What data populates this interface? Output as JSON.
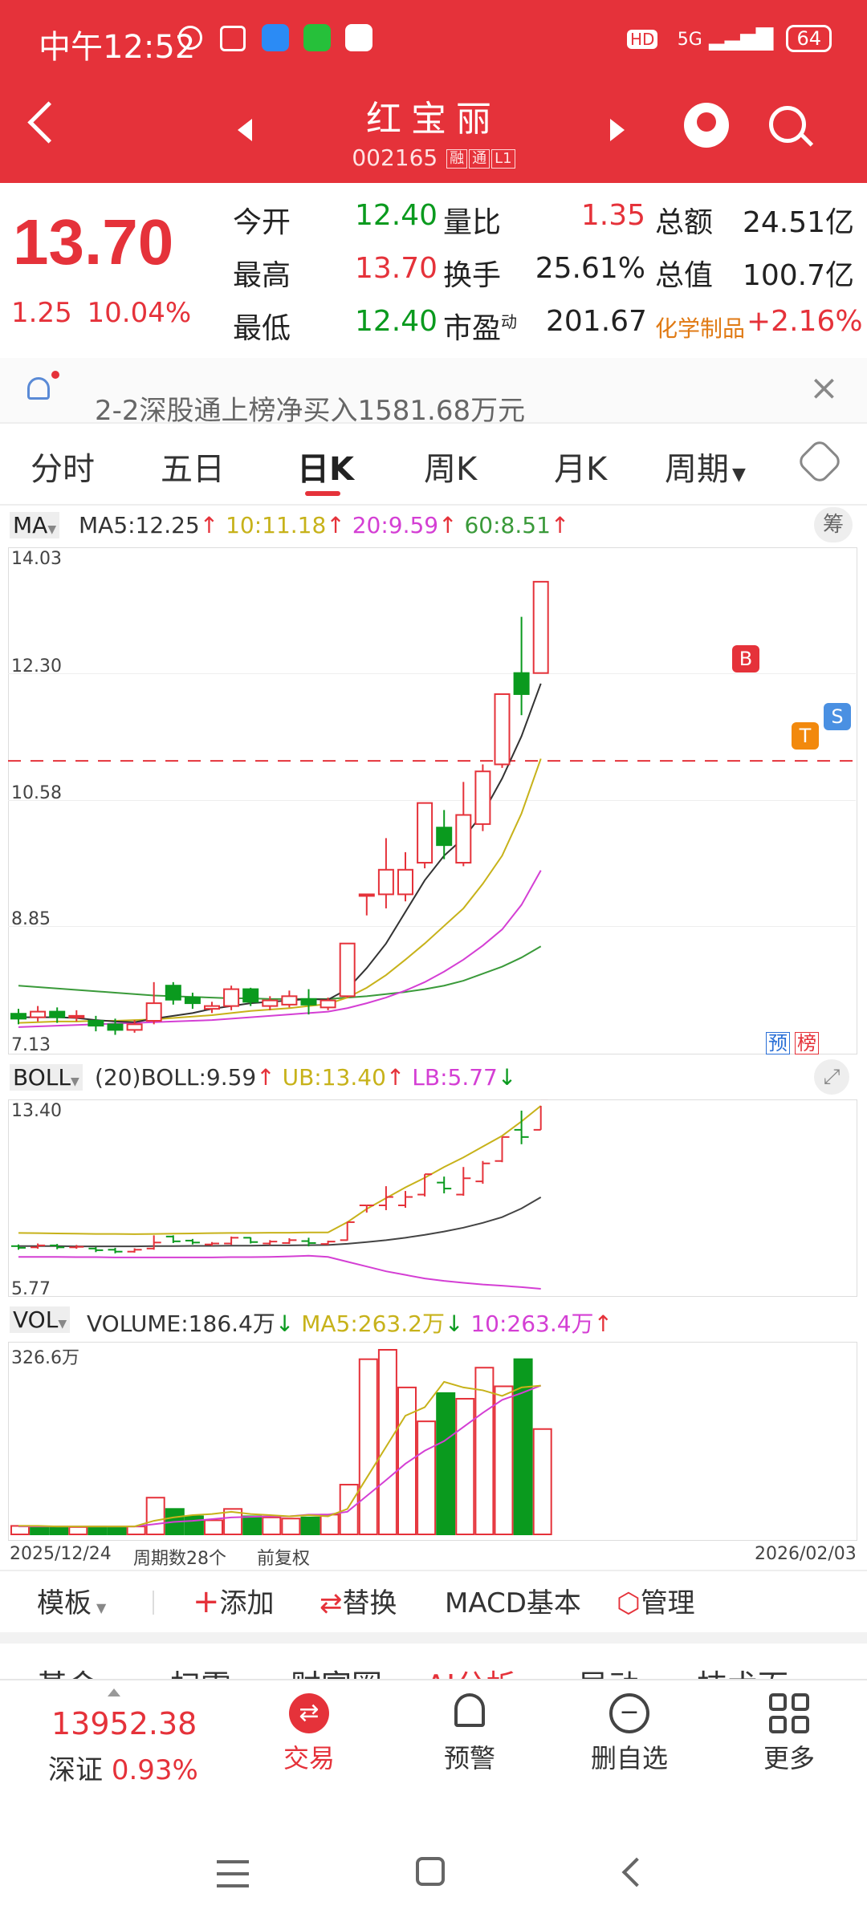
{
  "status": {
    "time": "中午12:52",
    "network": "5G",
    "battery": "64",
    "hd": "HD"
  },
  "header": {
    "title": "红宝丽",
    "code": "002165",
    "tags": [
      "融",
      "通",
      "L1"
    ]
  },
  "quote": {
    "price": "13.70",
    "change": "1.25",
    "change_pct": "10.04%",
    "rows": [
      {
        "l1": "今开",
        "v1": "12.40",
        "l2": "量比",
        "v2": "1.35",
        "l3": "总额",
        "v3": "24.51亿"
      },
      {
        "l1": "最高",
        "v1": "13.70",
        "l2": "换手",
        "v2": "25.61%",
        "l3": "总值",
        "v3": "100.7亿"
      },
      {
        "l1": "最低",
        "v1": "12.40",
        "l2": "市盈",
        "l2sup": "动",
        "v2": "201.67",
        "l3": "化学制品",
        "v3": "+2.16%"
      }
    ]
  },
  "notice": {
    "text": "2-2深股通上榜净买入1581.68万元"
  },
  "tabs": [
    "分时",
    "五日",
    "日K",
    "周K",
    "月K",
    "周期"
  ],
  "ma": {
    "label": "MA",
    "ma5": "MA5:12.25",
    "ma10": "10:11.18",
    "ma20": "20:9.59",
    "ma60": "60:8.51",
    "chip": "筹"
  },
  "kline": {
    "levels": [
      "14.03",
      "12.30",
      "10.58",
      "8.85",
      "7.13"
    ],
    "markers": {
      "b": "B",
      "t": "T",
      "s": "S",
      "pre": "预",
      "rank": "榜"
    }
  },
  "boll": {
    "label": "BOLL",
    "period": "(20)",
    "boll": "BOLL:9.59",
    "ub": "UB:13.40",
    "lb": "LB:5.77",
    "top": "13.40",
    "bottom": "5.77"
  },
  "vol": {
    "label": "VOL",
    "volume": "VOLUME:186.4万",
    "ma5": "MA5:263.2万",
    "ma10": "10:263.4万",
    "max": "326.6万"
  },
  "xaxis": {
    "start": "2025/12/24",
    "count": "周期数28个",
    "adj": "前复权",
    "end": "2026/02/03"
  },
  "toolbar": {
    "template": "模板",
    "add": "添加",
    "replace": "替换",
    "macd": "MACD基本",
    "manage": "管理"
  },
  "subtabs": [
    "基金",
    "扫雷",
    "财富圈",
    "AI分析",
    "异动",
    "技术面"
  ],
  "bottom": {
    "index_value": "13952.38",
    "index_name": "深证",
    "index_pct": "0.93%",
    "trade": "交易",
    "alert": "预警",
    "delete": "删自选",
    "more": "更多"
  },
  "colors": {
    "red": "#e5323a",
    "green": "#0a9a1e",
    "ma10": "#c7b21a",
    "ma20": "#d43fd4",
    "ma60": "#3a9a3a"
  },
  "chart_data": {
    "type": "candlestick",
    "candles": [
      {
        "o": 7.55,
        "c": 7.48,
        "h": 7.62,
        "l": 7.4
      },
      {
        "o": 7.5,
        "c": 7.58,
        "h": 7.66,
        "l": 7.44
      },
      {
        "o": 7.58,
        "c": 7.5,
        "h": 7.64,
        "l": 7.42
      },
      {
        "o": 7.5,
        "c": 7.52,
        "h": 7.6,
        "l": 7.44
      },
      {
        "o": 7.45,
        "c": 7.38,
        "h": 7.52,
        "l": 7.3
      },
      {
        "o": 7.4,
        "c": 7.32,
        "h": 7.48,
        "l": 7.25
      },
      {
        "o": 7.32,
        "c": 7.4,
        "h": 7.46,
        "l": 7.28
      },
      {
        "o": 7.45,
        "c": 7.7,
        "h": 8.0,
        "l": 7.4
      },
      {
        "o": 7.95,
        "c": 7.75,
        "h": 8.0,
        "l": 7.68
      },
      {
        "o": 7.78,
        "c": 7.7,
        "h": 7.85,
        "l": 7.62
      },
      {
        "o": 7.62,
        "c": 7.66,
        "h": 7.72,
        "l": 7.56
      },
      {
        "o": 7.66,
        "c": 7.9,
        "h": 7.95,
        "l": 7.6
      },
      {
        "o": 7.9,
        "c": 7.72,
        "h": 7.92,
        "l": 7.66
      },
      {
        "o": 7.66,
        "c": 7.74,
        "h": 7.8,
        "l": 7.6
      },
      {
        "o": 7.68,
        "c": 7.8,
        "h": 7.88,
        "l": 7.64
      },
      {
        "o": 7.76,
        "c": 7.68,
        "h": 7.9,
        "l": 7.54
      },
      {
        "o": 7.64,
        "c": 7.74,
        "h": 7.78,
        "l": 7.6
      },
      {
        "o": 7.8,
        "c": 8.55,
        "h": 8.55,
        "l": 7.78
      },
      {
        "o": 9.25,
        "c": 9.25,
        "h": 9.25,
        "l": 8.95
      },
      {
        "o": 9.25,
        "c": 9.6,
        "h": 10.05,
        "l": 9.05
      },
      {
        "o": 9.25,
        "c": 9.6,
        "h": 9.85,
        "l": 9.15
      },
      {
        "o": 9.7,
        "c": 10.55,
        "h": 10.55,
        "l": 9.62
      },
      {
        "o": 10.2,
        "c": 9.95,
        "h": 10.45,
        "l": 9.75
      },
      {
        "o": 9.7,
        "c": 10.38,
        "h": 10.85,
        "l": 9.65
      },
      {
        "o": 10.25,
        "c": 11.0,
        "h": 11.1,
        "l": 10.15
      },
      {
        "o": 11.1,
        "c": 12.1,
        "h": 12.1,
        "l": 11.05
      },
      {
        "o": 12.4,
        "c": 12.1,
        "h": 13.2,
        "l": 11.8
      },
      {
        "o": 12.4,
        "c": 13.7,
        "h": 13.7,
        "l": 12.4
      }
    ],
    "reference_price": 11.15,
    "ma5": [
      7.5,
      7.5,
      7.5,
      7.49,
      7.46,
      7.44,
      7.43,
      7.48,
      7.52,
      7.56,
      7.62,
      7.66,
      7.7,
      7.72,
      7.74,
      7.76,
      7.75,
      7.9,
      8.2,
      8.55,
      9.0,
      9.45,
      9.8,
      10.05,
      10.4,
      10.9,
      11.5,
      12.25
    ],
    "ma10": [
      7.42,
      7.43,
      7.44,
      7.44,
      7.45,
      7.45,
      7.46,
      7.47,
      7.49,
      7.51,
      7.53,
      7.56,
      7.59,
      7.61,
      7.63,
      7.66,
      7.69,
      7.78,
      7.92,
      8.1,
      8.32,
      8.55,
      8.8,
      9.05,
      9.4,
      9.8,
      10.4,
      11.18
    ],
    "ma20": [
      7.36,
      7.37,
      7.38,
      7.39,
      7.4,
      7.41,
      7.42,
      7.43,
      7.44,
      7.45,
      7.46,
      7.48,
      7.5,
      7.52,
      7.54,
      7.56,
      7.58,
      7.63,
      7.7,
      7.78,
      7.88,
      8.0,
      8.15,
      8.32,
      8.52,
      8.75,
      9.1,
      9.59
    ],
    "ma60": [
      7.95,
      7.93,
      7.91,
      7.89,
      7.87,
      7.85,
      7.83,
      7.81,
      7.8,
      7.79,
      7.78,
      7.77,
      7.77,
      7.76,
      7.76,
      7.76,
      7.76,
      7.78,
      7.8,
      7.83,
      7.86,
      7.9,
      7.95,
      8.02,
      8.12,
      8.22,
      8.35,
      8.51
    ],
    "boll_range": [
      5.77,
      13.4
    ],
    "boll_ub": [
      8.1,
      8.09,
      8.08,
      8.07,
      8.06,
      8.06,
      8.05,
      8.06,
      8.07,
      8.08,
      8.09,
      8.1,
      8.1,
      8.11,
      8.11,
      8.12,
      8.12,
      8.55,
      9.1,
      9.55,
      10.0,
      10.4,
      10.85,
      11.25,
      11.7,
      12.15,
      12.75,
      13.4
    ],
    "boll_mid": [
      7.55,
      7.55,
      7.55,
      7.54,
      7.54,
      7.54,
      7.54,
      7.55,
      7.55,
      7.56,
      7.56,
      7.57,
      7.57,
      7.58,
      7.58,
      7.59,
      7.6,
      7.65,
      7.72,
      7.8,
      7.9,
      8.02,
      8.16,
      8.32,
      8.52,
      8.76,
      9.12,
      9.59
    ],
    "boll_lb": [
      7.1,
      7.1,
      7.1,
      7.09,
      7.09,
      7.08,
      7.08,
      7.08,
      7.08,
      7.08,
      7.08,
      7.09,
      7.09,
      7.1,
      7.12,
      7.15,
      7.1,
      6.9,
      6.7,
      6.5,
      6.35,
      6.2,
      6.1,
      6.02,
      5.95,
      5.9,
      5.84,
      5.77
    ],
    "volume_max": 326.6,
    "volume": [
      15,
      14,
      14,
      13,
      14,
      13,
      14,
      65,
      45,
      32,
      25,
      45,
      32,
      30,
      28,
      30,
      35,
      88,
      310,
      326.6,
      260,
      200,
      250,
      240,
      295,
      262,
      310,
      186.4
    ],
    "volume_up": [
      true,
      false,
      false,
      true,
      false,
      false,
      true,
      true,
      false,
      false,
      true,
      true,
      false,
      true,
      true,
      false,
      true,
      true,
      true,
      true,
      true,
      true,
      false,
      true,
      true,
      true,
      false,
      true
    ],
    "vol_ma5": [
      15,
      15,
      14,
      14,
      14,
      14,
      14,
      24,
      30,
      34,
      36,
      40,
      36,
      34,
      32,
      34,
      32,
      45,
      100,
      155,
      210,
      225,
      270,
      260,
      255,
      245,
      260,
      263.2
    ],
    "vol_ma10": [
      14,
      14,
      14,
      14,
      14,
      14,
      14,
      18,
      22,
      24,
      27,
      30,
      31,
      32,
      32,
      35,
      35,
      40,
      68,
      96,
      125,
      148,
      165,
      190,
      215,
      238,
      250,
      263.4
    ]
  }
}
